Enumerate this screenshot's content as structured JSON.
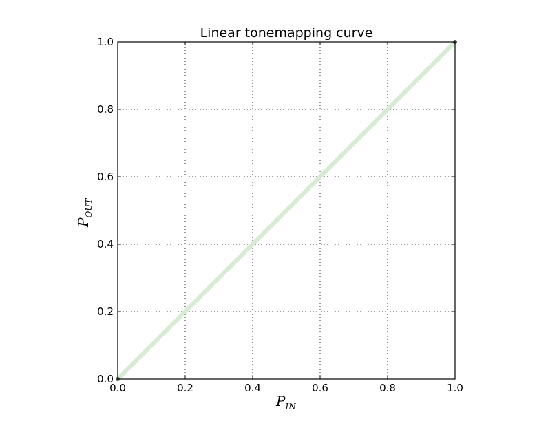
{
  "chart_data": {
    "type": "line",
    "title": "Linear tonemapping curve",
    "xlabel": {
      "base": "P",
      "sub": "IN"
    },
    "ylabel": {
      "base": "P",
      "sub": "OUT"
    },
    "xlim": [
      0.0,
      1.0
    ],
    "ylim": [
      0.0,
      1.0
    ],
    "xticks": [
      0.0,
      0.2,
      0.4,
      0.6,
      0.8,
      1.0
    ],
    "yticks": [
      0.0,
      0.2,
      0.4,
      0.6,
      0.8,
      1.0
    ],
    "xtick_labels": [
      "0.0",
      "0.2",
      "0.4",
      "0.6",
      "0.8",
      "1.0"
    ],
    "ytick_labels": [
      "0.0",
      "0.2",
      "0.4",
      "0.6",
      "0.8",
      "1.0"
    ],
    "grid": true,
    "series": [
      {
        "x": [
          0.0,
          1.0
        ],
        "y": [
          0.0,
          1.0
        ],
        "color": "#d6ecd2",
        "marker_color": "#555555"
      }
    ]
  }
}
